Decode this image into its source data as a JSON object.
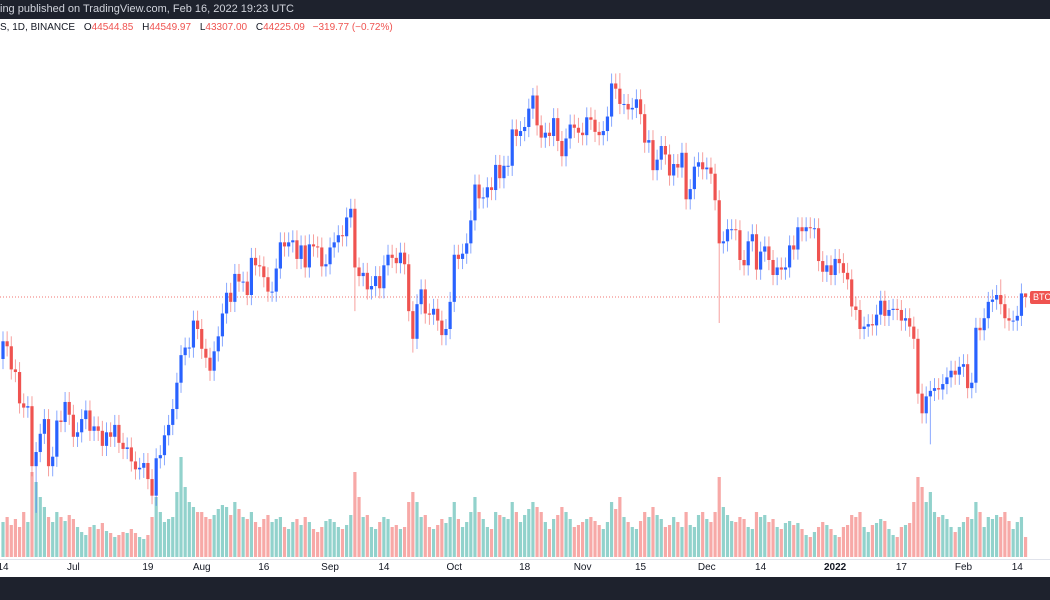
{
  "header": {
    "published_text": "ing published on TradingView.com, Feb 16, 2022 19:23 UTC"
  },
  "legend": {
    "symbol_text": "S, 1D, BINANCE",
    "open_label": "O",
    "open": "44544.85",
    "high_label": "H",
    "high": "44549.97",
    "low_label": "L",
    "low": "43307.00",
    "close_label": "C",
    "close": "44225.09",
    "change": "−319.77 (−0.72%)"
  },
  "price_tag": "BTC",
  "colors": {
    "up": "#2962ff",
    "down": "#ef5350",
    "volume_up": "#92d2cc",
    "volume_down": "#f7a9a7",
    "background": "#ffffff",
    "bar": "#1e222d"
  },
  "chart_data": {
    "type": "candlestick",
    "interval": "1D",
    "y_scale": "log",
    "grid": false,
    "start_date": "2021-06-14",
    "end_date": "2022-02-16",
    "first_open": 39.1,
    "units": "thousand USD",
    "close": [
      40.5,
      40.1,
      38.3,
      38.1,
      35.8,
      35.5,
      35.6,
      31.6,
      32.5,
      33.7,
      34.7,
      31.6,
      32.2,
      34.6,
      34.5,
      35.9,
      35.0,
      33.5,
      33.8,
      34.7,
      35.3,
      33.9,
      34.2,
      33.9,
      32.9,
      33.8,
      33.5,
      34.3,
      33.1,
      32.7,
      32.8,
      31.9,
      31.4,
      31.5,
      31.8,
      30.8,
      29.8,
      32.1,
      32.3,
      33.6,
      34.3,
      35.4,
      37.3,
      39.4,
      40.0,
      40.0,
      42.2,
      41.5,
      39.9,
      39.2,
      38.2,
      39.7,
      40.9,
      42.8,
      44.6,
      43.8,
      46.3,
      45.6,
      45.6,
      44.4,
      47.8,
      47.1,
      47.0,
      46.0,
      44.7,
      44.7,
      46.8,
      49.3,
      48.9,
      49.3,
      49.5,
      47.7,
      49.0,
      46.9,
      49.1,
      48.9,
      48.8,
      47.0,
      47.2,
      48.8,
      49.3,
      50.0,
      49.9,
      51.8,
      52.7,
      46.9,
      46.1,
      46.4,
      44.9,
      45.2,
      46.1,
      45.0,
      47.1,
      48.1,
      47.8,
      47.3,
      48.3,
      47.2,
      43.0,
      40.7,
      43.6,
      44.9,
      42.8,
      42.7,
      43.2,
      42.2,
      41.0,
      41.5,
      43.8,
      48.1,
      47.7,
      48.2,
      49.2,
      51.5,
      55.3,
      53.8,
      53.9,
      55.0,
      54.7,
      57.5,
      56.0,
      57.4,
      57.4,
      61.7,
      60.9,
      61.5,
      62.0,
      64.3,
      66.0,
      62.2,
      60.7,
      61.3,
      60.9,
      63.1,
      60.3,
      58.5,
      60.6,
      62.3,
      61.9,
      61.3,
      61.0,
      63.2,
      62.9,
      61.4,
      61.0,
      61.5,
      63.3,
      67.6,
      66.9,
      64.9,
      64.9,
      64.2,
      64.4,
      65.5,
      63.6,
      60.1,
      60.4,
      56.9,
      58.1,
      59.7,
      58.7,
      56.3,
      57.6,
      57.2,
      58.9,
      53.7,
      54.8,
      57.3,
      57.8,
      57.0,
      57.2,
      56.5,
      53.6,
      49.2,
      49.4,
      50.6,
      50.6,
      50.5,
      47.6,
      47.1,
      49.4,
      50.1,
      46.7,
      48.4,
      48.9,
      47.6,
      46.2,
      46.9,
      46.7,
      46.9,
      49.0,
      48.6,
      50.8,
      50.4,
      50.8,
      50.7,
      50.7,
      47.5,
      46.5,
      47.1,
      46.2,
      47.7,
      47.3,
      46.4,
      45.8,
      43.4,
      43.1,
      41.5,
      41.7,
      41.9,
      41.8,
      42.7,
      43.9,
      42.6,
      43.1,
      43.2,
      43.1,
      42.2,
      42.4,
      41.7,
      40.7,
      36.5,
      35.1,
      36.3,
      36.7,
      36.9,
      36.8,
      37.2,
      37.7,
      38.2,
      37.9,
      38.5,
      38.7,
      36.9,
      37.3,
      41.6,
      41.4,
      42.4,
      43.8,
      44.0,
      44.4,
      43.6,
      42.4,
      42.2,
      42.2,
      42.6,
      44.54,
      44.23
    ],
    "high_overrides": {
      "2021-11-10": 69.0,
      "2021-10-20": 67.0,
      "2022-02-10": 45.8,
      "2022-02-16": 44.55
    },
    "low_overrides": {
      "2021-06-22": 28.8,
      "2021-07-20": 29.3,
      "2021-09-07": 43.0,
      "2021-09-21": 39.6,
      "2021-12-04": 42.0,
      "2022-01-24": 33.0,
      "2022-02-16": 43.31
    },
    "last_open": 44.54,
    "volume_relative": [
      35,
      40,
      32,
      38,
      30,
      45,
      35,
      85,
      75,
      60,
      50,
      40,
      35,
      45,
      40,
      36,
      42,
      38,
      30,
      25,
      22,
      30,
      32,
      28,
      34,
      26,
      24,
      20,
      22,
      25,
      24,
      28,
      24,
      20,
      18,
      22,
      40,
      60,
      45,
      35,
      38,
      40,
      65,
      100,
      70,
      55,
      50,
      45,
      45,
      40,
      38,
      42,
      48,
      52,
      50,
      42,
      55,
      48,
      40,
      38,
      45,
      35,
      30,
      38,
      42,
      35,
      38,
      40,
      30,
      28,
      35,
      38,
      32,
      40,
      35,
      28,
      25,
      30,
      36,
      38,
      35,
      30,
      28,
      32,
      42,
      85,
      60,
      40,
      42,
      30,
      28,
      35,
      40,
      38,
      30,
      32,
      28,
      30,
      55,
      65,
      55,
      40,
      42,
      30,
      28,
      32,
      38,
      34,
      40,
      55,
      38,
      30,
      35,
      45,
      60,
      45,
      38,
      30,
      28,
      45,
      42,
      40,
      38,
      55,
      45,
      35,
      42,
      48,
      55,
      50,
      45,
      35,
      28,
      38,
      42,
      50,
      45,
      38,
      30,
      32,
      35,
      38,
      40,
      36,
      32,
      28,
      35,
      55,
      48,
      60,
      40,
      35,
      30,
      28,
      36,
      45,
      40,
      50,
      42,
      38,
      30,
      32,
      40,
      35,
      30,
      45,
      32,
      30,
      42,
      45,
      38,
      35,
      45,
      80,
      50,
      42,
      36,
      35,
      40,
      38,
      30,
      28,
      45,
      40,
      42,
      35,
      38,
      30,
      28,
      34,
      36,
      32,
      34,
      28,
      22,
      20,
      25,
      30,
      35,
      32,
      28,
      22,
      20,
      30,
      32,
      42,
      40,
      45,
      30,
      25,
      32,
      34,
      38,
      36,
      28,
      22,
      20,
      30,
      32,
      34,
      55,
      80,
      70,
      55,
      65,
      45,
      40,
      42,
      38,
      30,
      25,
      30,
      35,
      40,
      38,
      55,
      45,
      30,
      40,
      38,
      42,
      40,
      45,
      36,
      28,
      35,
      40,
      20
    ],
    "last_price_line": 44.23,
    "x_ticks": [
      {
        "label": "14",
        "date": "2021-06-14"
      },
      {
        "label": "Jul",
        "date": "2021-07-01"
      },
      {
        "label": "19",
        "date": "2021-07-19"
      },
      {
        "label": "Aug",
        "date": "2021-08-01"
      },
      {
        "label": "16",
        "date": "2021-08-16"
      },
      {
        "label": "Sep",
        "date": "2021-09-01"
      },
      {
        "label": "14",
        "date": "2021-09-14"
      },
      {
        "label": "Oct",
        "date": "2021-10-01"
      },
      {
        "label": "18",
        "date": "2021-10-18"
      },
      {
        "label": "Nov",
        "date": "2021-11-01"
      },
      {
        "label": "15",
        "date": "2021-11-15"
      },
      {
        "label": "Dec",
        "date": "2021-12-01"
      },
      {
        "label": "14",
        "date": "2021-12-14"
      },
      {
        "label": "2022",
        "date": "2022-01-01"
      },
      {
        "label": "17",
        "date": "2022-01-17"
      },
      {
        "label": "Feb",
        "date": "2022-02-01"
      },
      {
        "label": "14",
        "date": "2022-02-14"
      }
    ]
  }
}
